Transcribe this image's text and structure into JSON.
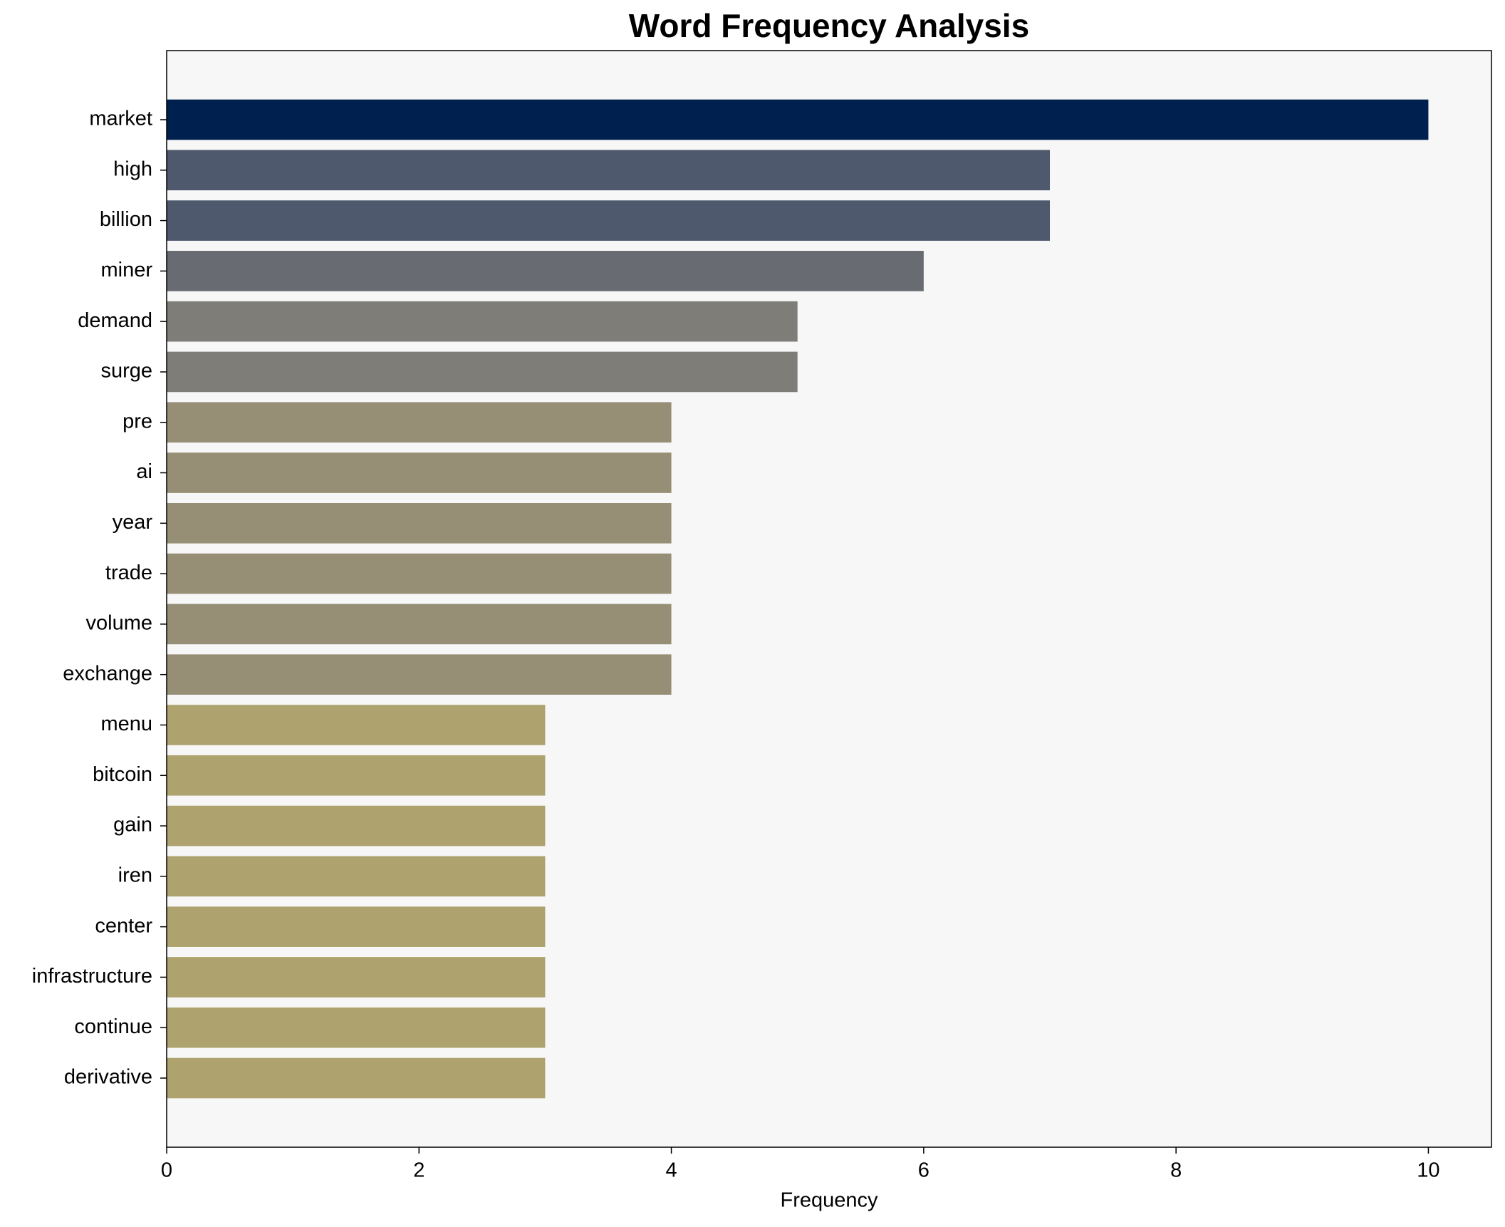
{
  "chart_data": {
    "type": "barh",
    "title": "Word Frequency Analysis",
    "x_label": "Frequency",
    "categories": [
      "market",
      "high",
      "billion",
      "miner",
      "demand",
      "surge",
      "pre",
      "ai",
      "year",
      "trade",
      "volume",
      "exchange",
      "menu",
      "bitcoin",
      "gain",
      "iren",
      "center",
      "infrastructure",
      "continue",
      "derivative"
    ],
    "values": [
      10,
      7,
      7,
      6,
      5,
      5,
      4,
      4,
      4,
      4,
      4,
      4,
      3,
      3,
      3,
      3,
      3,
      3,
      3,
      3
    ],
    "colors": [
      "#002050",
      "#4f596d",
      "#4f596d",
      "#696b73",
      "#7f7d77",
      "#7f7d77",
      "#968f76",
      "#968f76",
      "#968f76",
      "#968f76",
      "#968f76",
      "#968f76",
      "#aea36f",
      "#aea36f",
      "#aea36f",
      "#aea36f",
      "#aea36f",
      "#aea36f",
      "#aea36f",
      "#aea36f"
    ],
    "xlim": [
      0,
      10.5
    ],
    "xticks": [
      0,
      2,
      4,
      6,
      8,
      10
    ],
    "grid": false
  }
}
